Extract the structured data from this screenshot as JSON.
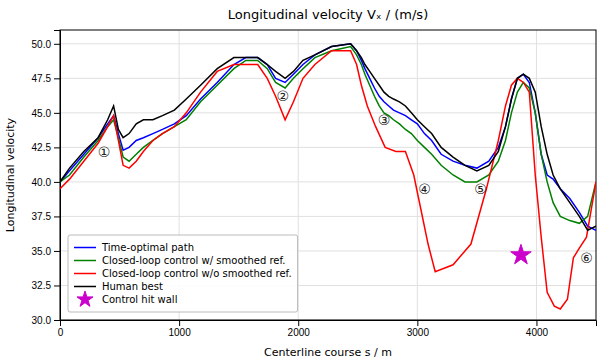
{
  "chart_data": {
    "type": "line",
    "title": "Longitudinal velocity Vₓ / (m/s)",
    "xlabel": "Centerline course s / m",
    "ylabel": "Longitudinal velocity",
    "xlim": [
      0,
      4500
    ],
    "ylim": [
      30.0,
      51.0
    ],
    "xticks": [
      0,
      1000,
      2000,
      3000,
      4000
    ],
    "yticks": [
      {
        "value": 30.0,
        "label": "30.0"
      },
      32.5,
      {
        "value": 35.0,
        "label": "35.0"
      },
      37.5,
      {
        "value": 40.0,
        "label": "40.0"
      },
      42.5,
      {
        "value": 45.0,
        "label": "45.0"
      },
      47.5,
      {
        "value": 50.0,
        "label": "50.0"
      }
    ],
    "grid": true,
    "legend": "lower left",
    "series": [
      {
        "name": "Time-optimal path",
        "type": "line",
        "line_style": "solid",
        "color": "#0000FF",
        "x": [
          0,
          80,
          200,
          320,
          400,
          450,
          490,
          530,
          580,
          640,
          700,
          780,
          860,
          960,
          1060,
          1180,
          1320,
          1460,
          1560,
          1660,
          1740,
          1810,
          1890,
          1960,
          2040,
          2140,
          2280,
          2440,
          2490,
          2530,
          2560,
          2600,
          2640,
          2680,
          2720,
          2760,
          2800,
          2850,
          2900,
          2950,
          3000,
          3060,
          3120,
          3200,
          3300,
          3400,
          3500,
          3600,
          3680,
          3740,
          3790,
          3840,
          3890,
          3940,
          3990,
          4040,
          4090,
          4140,
          4200,
          4280,
          4360,
          4430,
          4500
        ],
        "values": [
          40.0,
          40.8,
          42.0,
          43.2,
          44.2,
          44.8,
          43.5,
          42.3,
          42.5,
          43.0,
          43.2,
          43.5,
          43.8,
          44.2,
          44.8,
          46.0,
          47.2,
          48.5,
          49.0,
          49.0,
          48.5,
          47.5,
          47.2,
          47.8,
          48.5,
          49.2,
          49.8,
          50.0,
          49.5,
          48.8,
          48.2,
          47.5,
          46.8,
          46.2,
          45.8,
          45.5,
          45.2,
          45.0,
          44.8,
          44.5,
          44.2,
          43.5,
          43.0,
          42.0,
          41.5,
          41.2,
          41.0,
          41.5,
          42.5,
          44.0,
          46.0,
          47.5,
          47.8,
          47.2,
          45.0,
          42.0,
          40.5,
          40.2,
          39.5,
          38.8,
          37.8,
          36.8,
          36.5
        ]
      },
      {
        "name": "Closed-loop control w/ smoothed ref.",
        "type": "line",
        "line_style": "solid",
        "color": "#008000",
        "x": [
          0,
          80,
          200,
          320,
          400,
          450,
          490,
          530,
          580,
          640,
          700,
          780,
          860,
          960,
          1060,
          1180,
          1320,
          1460,
          1560,
          1660,
          1740,
          1810,
          1890,
          1960,
          2040,
          2140,
          2280,
          2440,
          2490,
          2530,
          2560,
          2600,
          2640,
          2680,
          2720,
          2760,
          2800,
          2850,
          2900,
          2950,
          3000,
          3060,
          3120,
          3200,
          3300,
          3400,
          3500,
          3600,
          3680,
          3740,
          3790,
          3840,
          3890,
          3940,
          3990,
          4040,
          4090,
          4140,
          4200,
          4280,
          4360,
          4430,
          4500
        ],
        "values": [
          40.0,
          40.5,
          41.8,
          43.0,
          44.0,
          44.5,
          43.2,
          41.8,
          41.5,
          42.0,
          42.5,
          43.0,
          43.5,
          44.0,
          44.5,
          45.8,
          47.0,
          48.2,
          48.8,
          48.8,
          48.2,
          47.2,
          46.8,
          47.5,
          48.2,
          49.0,
          49.5,
          49.8,
          49.2,
          48.5,
          47.8,
          47.0,
          46.2,
          45.5,
          45.0,
          44.8,
          44.5,
          44.2,
          43.8,
          43.5,
          43.0,
          42.5,
          42.0,
          41.2,
          40.5,
          40.0,
          40.0,
          40.5,
          41.5,
          43.0,
          45.0,
          46.5,
          47.2,
          46.8,
          45.0,
          42.0,
          40.0,
          38.5,
          37.5,
          37.2,
          37.0,
          37.5,
          40.0
        ]
      },
      {
        "name": "Closed-loop control w/o smoothed ref.",
        "type": "line",
        "line_style": "solid",
        "color": "#FF0000",
        "x": [
          0,
          80,
          200,
          320,
          400,
          450,
          490,
          530,
          580,
          640,
          700,
          780,
          860,
          960,
          1060,
          1180,
          1320,
          1460,
          1560,
          1660,
          1740,
          1810,
          1890,
          1960,
          2040,
          2140,
          2280,
          2440,
          2490,
          2530,
          2580,
          2650,
          2730,
          2820,
          2900,
          2970,
          3030,
          3090,
          3150,
          3300,
          3450,
          3580,
          3680,
          3740,
          3790,
          3840,
          3890,
          3940,
          3990,
          4040,
          4090,
          4150,
          4200,
          4260,
          4310,
          4360,
          4420,
          4500
        ],
        "values": [
          39.5,
          40.2,
          41.5,
          42.8,
          44.0,
          44.8,
          43.0,
          41.2,
          41.0,
          41.5,
          42.2,
          43.0,
          43.5,
          44.0,
          45.0,
          46.5,
          48.0,
          48.5,
          48.5,
          48.5,
          47.5,
          46.2,
          44.5,
          45.8,
          47.5,
          48.5,
          49.5,
          49.5,
          48.5,
          47.0,
          45.5,
          44.0,
          42.5,
          42.2,
          42.2,
          40.5,
          38.0,
          35.5,
          33.5,
          34.0,
          35.5,
          39.5,
          43.0,
          45.5,
          47.0,
          47.5,
          47.2,
          46.5,
          40.5,
          36.0,
          32.0,
          31.0,
          30.8,
          31.5,
          34.5,
          35.2,
          36.0,
          40.0
        ]
      },
      {
        "name": "Human best",
        "type": "line",
        "line_style": "solid",
        "color": "#000000",
        "x": [
          0,
          80,
          200,
          320,
          400,
          450,
          490,
          530,
          580,
          640,
          700,
          780,
          860,
          960,
          1060,
          1180,
          1320,
          1460,
          1560,
          1660,
          1740,
          1810,
          1890,
          1960,
          2040,
          2140,
          2280,
          2440,
          2490,
          2530,
          2560,
          2600,
          2640,
          2680,
          2720,
          2760,
          2800,
          2850,
          2900,
          2950,
          3000,
          3060,
          3120,
          3200,
          3300,
          3400,
          3500,
          3600,
          3680,
          3740,
          3790,
          3840,
          3890,
          3940,
          3990,
          4040,
          4090,
          4140,
          4200,
          4280,
          4360,
          4430,
          4500
        ],
        "values": [
          40.0,
          41.0,
          42.2,
          43.2,
          44.5,
          45.5,
          43.8,
          43.2,
          43.5,
          44.2,
          44.5,
          44.5,
          44.8,
          45.2,
          46.0,
          47.0,
          48.2,
          49.0,
          49.0,
          49.0,
          48.5,
          48.0,
          47.5,
          48.0,
          48.8,
          49.2,
          49.8,
          50.0,
          49.5,
          49.0,
          48.5,
          48.0,
          47.5,
          47.0,
          46.5,
          46.2,
          46.0,
          45.8,
          45.5,
          45.0,
          44.5,
          44.0,
          43.5,
          42.5,
          41.8,
          41.2,
          40.8,
          41.2,
          42.2,
          44.0,
          46.0,
          47.5,
          47.8,
          47.5,
          46.5,
          44.0,
          42.0,
          40.5,
          39.5,
          38.5,
          37.5,
          36.5,
          36.8
        ]
      },
      {
        "name": "Control hit wall",
        "type": "scatter",
        "marker": "star",
        "color": "#CC00CC",
        "x": [
          3870
        ],
        "values": [
          34.7
        ]
      }
    ],
    "annotations": [
      {
        "text": "①",
        "x": 370,
        "y": 42.2
      },
      {
        "text": "②",
        "x": 1870,
        "y": 46.2
      },
      {
        "text": "③",
        "x": 2720,
        "y": 44.5
      },
      {
        "text": "④",
        "x": 3060,
        "y": 39.5
      },
      {
        "text": "⑤",
        "x": 3530,
        "y": 39.5
      },
      {
        "text": "⑥",
        "x": 4420,
        "y": 34.5
      }
    ]
  }
}
